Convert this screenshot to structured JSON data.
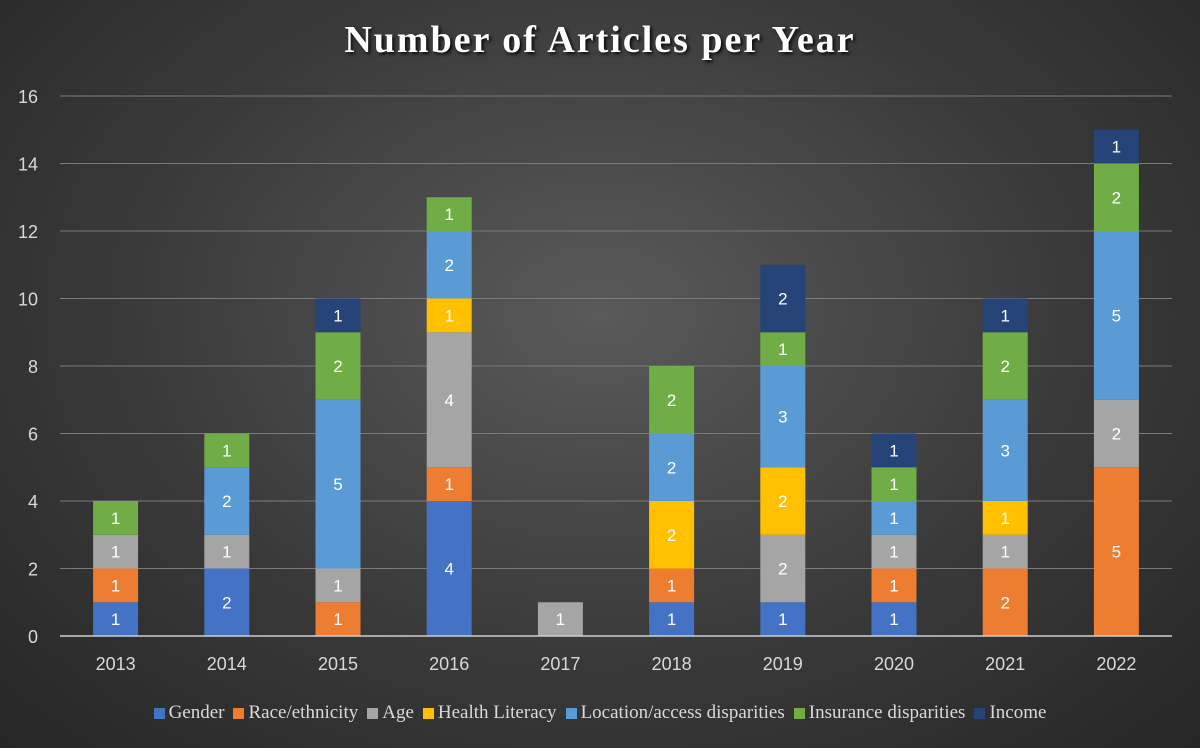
{
  "chart_data": {
    "type": "bar",
    "stacked": true,
    "title": "Number of Articles per Year",
    "xlabel": "",
    "ylabel": "",
    "categories": [
      "2013",
      "2014",
      "2015",
      "2016",
      "2017",
      "2018",
      "2019",
      "2020",
      "2021",
      "2022"
    ],
    "ylim": [
      0,
      16
    ],
    "yticks": [
      0,
      2,
      4,
      6,
      8,
      10,
      12,
      14,
      16
    ],
    "grid": true,
    "legend_position": "bottom",
    "series": [
      {
        "name": "Gender",
        "color": "#4472C4",
        "values": [
          1,
          2,
          0,
          4,
          0,
          1,
          1,
          1,
          0,
          0
        ]
      },
      {
        "name": "Race/ethnicity",
        "color": "#ED7D31",
        "values": [
          1,
          0,
          1,
          1,
          0,
          1,
          0,
          1,
          2,
          5
        ]
      },
      {
        "name": "Age",
        "color": "#A5A5A5",
        "values": [
          1,
          1,
          1,
          4,
          1,
          0,
          2,
          1,
          1,
          2
        ]
      },
      {
        "name": "Health Literacy",
        "color": "#FFC000",
        "values": [
          0,
          0,
          0,
          1,
          0,
          2,
          2,
          0,
          1,
          0
        ]
      },
      {
        "name": "Location/access disparities",
        "color": "#5B9BD5",
        "values": [
          0,
          2,
          5,
          2,
          0,
          2,
          3,
          1,
          3,
          5
        ]
      },
      {
        "name": "Insurance disparities",
        "color": "#70AD47",
        "values": [
          1,
          1,
          2,
          1,
          0,
          2,
          1,
          1,
          2,
          2
        ]
      },
      {
        "name": "Income",
        "color": "#264478",
        "values": [
          0,
          0,
          1,
          0,
          0,
          0,
          2,
          1,
          1,
          1
        ]
      }
    ]
  }
}
